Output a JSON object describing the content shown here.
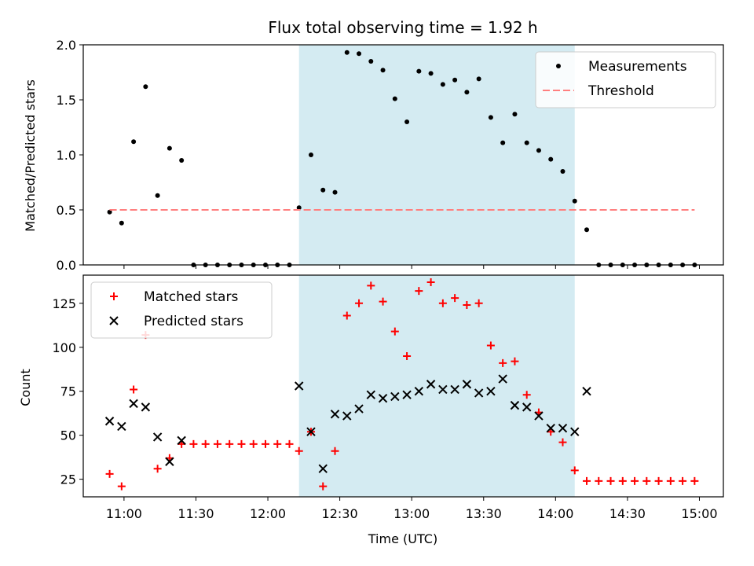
{
  "chart_data": {
    "title": "Flux total observing time = 1.92 h",
    "xlabel": "Time (UTC)",
    "x_range": [
      "10:43",
      "15:10"
    ],
    "x_ticks": [
      "11:00",
      "11:30",
      "12:00",
      "12:30",
      "13:00",
      "13:30",
      "14:00",
      "14:30",
      "15:00"
    ],
    "shaded_interval": [
      "12:13",
      "14:08"
    ],
    "shaded_color": "#add8e6",
    "times": [
      "10:54",
      "10:59",
      "11:04",
      "11:09",
      "11:14",
      "11:19",
      "11:24",
      "11:29",
      "11:34",
      "11:39",
      "11:44",
      "11:49",
      "11:54",
      "11:59",
      "12:04",
      "12:09",
      "12:13",
      "12:18",
      "12:23",
      "12:28",
      "12:33",
      "12:38",
      "12:43",
      "12:48",
      "12:53",
      "12:58",
      "13:03",
      "13:08",
      "13:13",
      "13:18",
      "13:23",
      "13:28",
      "13:33",
      "13:38",
      "13:43",
      "13:48",
      "13:53",
      "13:58",
      "14:03",
      "14:08",
      "14:13",
      "14:18",
      "14:23",
      "14:28",
      "14:33",
      "14:38",
      "14:43",
      "14:48",
      "14:53",
      "14:58"
    ],
    "panels": [
      {
        "type": "scatter",
        "ylabel": "Matched/Predicted stars",
        "ylim": [
          0,
          2.0
        ],
        "y_ticks": [
          "0.0",
          "0.5",
          "1.0",
          "1.5",
          "2.0"
        ],
        "y_tick_values": [
          0,
          0.5,
          1.0,
          1.5,
          2.0
        ],
        "legend": "top-right",
        "series": [
          {
            "name": "Measurements",
            "marker": "dot",
            "color": "#000000",
            "values": [
              0.48,
              0.38,
              1.12,
              1.62,
              0.63,
              1.06,
              0.95,
              0,
              0,
              0,
              0,
              0,
              0,
              0,
              0,
              0,
              0.52,
              1.0,
              0.68,
              0.66,
              1.93,
              1.92,
              1.85,
              1.77,
              1.51,
              1.3,
              1.76,
              1.74,
              1.64,
              1.68,
              1.57,
              1.69,
              1.34,
              1.11,
              1.37,
              1.11,
              1.04,
              0.96,
              0.85,
              0.58,
              0.32,
              0,
              0,
              0,
              0,
              0,
              0,
              0,
              0,
              0
            ]
          },
          {
            "name": "Threshold",
            "marker": "dashed-line",
            "color": "#ff7f7f",
            "value": 0.5,
            "x_start": "10:54",
            "x_end": "14:58"
          }
        ]
      },
      {
        "type": "scatter",
        "ylabel": "Count",
        "ylim": [
          15,
          141
        ],
        "y_ticks": [
          "25",
          "50",
          "75",
          "100",
          "125"
        ],
        "y_tick_values": [
          25,
          50,
          75,
          100,
          125
        ],
        "legend": "top-left",
        "series": [
          {
            "name": "Matched stars",
            "marker": "plus",
            "color": "#ff0000",
            "values": [
              28,
              21,
              76,
              107,
              31,
              37,
              45,
              45,
              45,
              45,
              45,
              45,
              45,
              45,
              45,
              45,
              41,
              52,
              21,
              41,
              118,
              125,
              135,
              126,
              109,
              95,
              132,
              137,
              125,
              128,
              124,
              125,
              101,
              91,
              92,
              73,
              63,
              52,
              46,
              30,
              24,
              24,
              24,
              24,
              24,
              24,
              24,
              24,
              24,
              24
            ]
          },
          {
            "name": "Predicted stars",
            "marker": "x",
            "color": "#000000",
            "values": [
              58,
              55,
              68,
              66,
              49,
              35,
              47,
              null,
              null,
              null,
              null,
              null,
              null,
              null,
              null,
              null,
              78,
              52,
              31,
              62,
              61,
              65,
              73,
              71,
              72,
              73,
              75,
              79,
              76,
              76,
              79,
              74,
              75,
              82,
              67,
              66,
              61,
              54,
              54,
              52,
              75,
              null,
              null,
              null,
              null,
              null,
              null,
              null,
              null,
              null
            ]
          }
        ]
      }
    ]
  }
}
